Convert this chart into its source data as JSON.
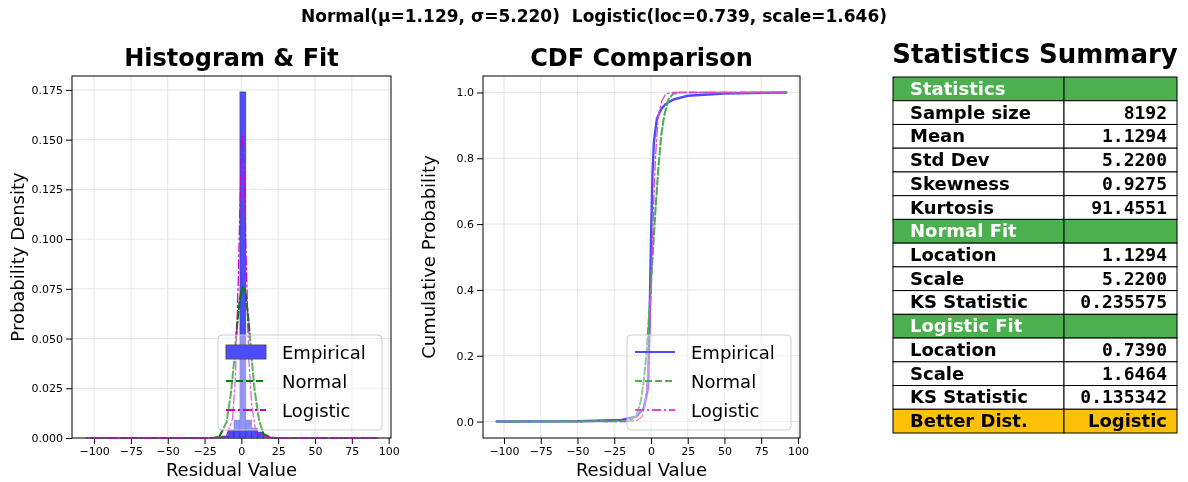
{
  "chart_data": [
    {
      "type": "histogram",
      "title": "Histogram & Fit",
      "xlabel": "Residual Value",
      "ylabel": "Probability Density",
      "annotations": [
        "Normal(μ=1.129, σ=5.220)  Logistic(loc=0.739, scale=1.646)"
      ],
      "xlim": [
        -115,
        101.6
      ],
      "xticks": [
        -100,
        -75,
        -50,
        -25,
        0,
        25,
        50,
        75,
        100
      ],
      "ylim": [
        0,
        0.182
      ],
      "yticks": [
        {
          "value": 0,
          "label": "0.000"
        },
        {
          "value": 0.025,
          "label": "0.025"
        },
        {
          "value": 0.05,
          "label": "0.050"
        },
        {
          "value": 0.075,
          "label": "0.075"
        },
        {
          "value": 0.1,
          "label": "0.100"
        },
        {
          "value": 0.125,
          "label": "0.125"
        },
        {
          "value": 0.15,
          "label": "0.150"
        },
        {
          "value": 0.175,
          "label": "0.175"
        }
      ],
      "grid": true,
      "legend": "bottom right",
      "series": [
        {
          "name": "Empirical",
          "type": "histogram",
          "color": "#4b4bff",
          "bins": [
            -105,
            -101,
            -97,
            -93,
            -89,
            -85,
            -81,
            -77,
            -73,
            -69,
            -65,
            -61,
            -57,
            -53,
            -49,
            -45,
            -41,
            -37,
            -33,
            -29,
            -25,
            -21,
            -17,
            -13,
            -9,
            -5,
            -1,
            3,
            7,
            11,
            15,
            19,
            23,
            27,
            31,
            35,
            39,
            43,
            47,
            51,
            55,
            59,
            63,
            67,
            71,
            75,
            79,
            83,
            87,
            91,
            95
          ],
          "values": [
            0,
            0,
            0,
            0,
            0,
            0,
            0,
            0,
            0,
            0,
            0,
            0,
            0,
            0,
            0,
            0,
            0,
            0,
            0,
            0,
            0,
            0,
            0.0005,
            0.001,
            0.004,
            0.009,
            0.174,
            0.009,
            0.005,
            0.003,
            0.001,
            0.0005,
            0,
            0,
            0,
            0,
            0,
            0,
            0,
            0,
            0,
            0,
            0,
            0,
            0,
            0,
            0,
            0,
            0,
            0
          ]
        },
        {
          "name": "Normal",
          "type": "line",
          "color": "#008000",
          "line_style": "dashed",
          "x": [
            -105,
            -20,
            -15,
            -10,
            -7,
            -5,
            -3,
            -1,
            1.1,
            3,
            5,
            7,
            9,
            12,
            15,
            20,
            92
          ],
          "values": [
            0,
            0,
            0.0006,
            0.008,
            0.023,
            0.038,
            0.056,
            0.07,
            0.076,
            0.072,
            0.058,
            0.04,
            0.024,
            0.009,
            0.002,
            0,
            0
          ]
        },
        {
          "name": "Logistic",
          "type": "line",
          "color": "#cc00cc",
          "line_style": "dashdot",
          "x": [
            -105,
            -20,
            -10,
            -6,
            -4,
            -2,
            -1,
            0,
            0.7,
            2,
            3,
            5,
            7,
            10,
            20,
            92
          ],
          "values": [
            0,
            0,
            0.0009,
            0.0098,
            0.031,
            0.082,
            0.116,
            0.144,
            0.152,
            0.132,
            0.098,
            0.04,
            0.017,
            0.002,
            0,
            0
          ]
        }
      ]
    },
    {
      "type": "line",
      "title": "CDF Comparison",
      "xlabel": "Residual Value",
      "ylabel": "Cumulative Probability",
      "xlim": [
        -114.3,
        101.4
      ],
      "xticks": [
        -100,
        -75,
        -50,
        -25,
        0,
        25,
        50,
        75,
        100
      ],
      "ylim": [
        -0.05,
        1.05
      ],
      "yticks": [
        {
          "value": 0,
          "label": "0.0"
        },
        {
          "value": 0.2,
          "label": "0.2"
        },
        {
          "value": 0.4,
          "label": "0.4"
        },
        {
          "value": 0.6,
          "label": "0.6"
        },
        {
          "value": 0.8,
          "label": "0.8"
        },
        {
          "value": 1,
          "label": "1.0"
        }
      ],
      "grid": true,
      "legend": "bottom right",
      "series": [
        {
          "name": "Empirical",
          "color": "#4d4dff",
          "line_style": "solid",
          "x": [
            -105,
            -50,
            -20,
            -10,
            -5,
            -2,
            -1,
            0,
            1,
            2,
            4,
            7,
            10,
            15,
            25,
            50,
            92
          ],
          "values": [
            0,
            0.001,
            0.005,
            0.015,
            0.04,
            0.1,
            0.3,
            0.55,
            0.75,
            0.85,
            0.92,
            0.95,
            0.965,
            0.978,
            0.99,
            0.997,
            1
          ]
        },
        {
          "name": "Normal",
          "color": "#4caf50",
          "line_style": "dashed",
          "x": [
            -105,
            -15,
            -10,
            -7,
            -5,
            -3,
            -1,
            1.1,
            3,
            5,
            7,
            9,
            12,
            15,
            20,
            92
          ],
          "values": [
            0,
            0.001,
            0.017,
            0.06,
            0.12,
            0.21,
            0.34,
            0.5,
            0.64,
            0.77,
            0.87,
            0.93,
            0.98,
            0.996,
            1,
            1
          ]
        },
        {
          "name": "Logistic",
          "color": "#dd44dd",
          "line_style": "dashdot",
          "x": [
            -105,
            -20,
            -10,
            -6,
            -4,
            -2,
            -1,
            0,
            0.7,
            2,
            3,
            5,
            7,
            10,
            15,
            92
          ],
          "values": [
            0,
            0,
            0.002,
            0.016,
            0.053,
            0.16,
            0.26,
            0.39,
            0.5,
            0.68,
            0.8,
            0.93,
            0.97,
            0.996,
            1,
            1
          ]
        }
      ]
    },
    {
      "type": "other",
      "title": "Statistics Summary",
      "cell_labels": [
        [
          "Statistics",
          null
        ],
        [
          "Sample size",
          "8192"
        ],
        [
          "Mean",
          "1.1294"
        ],
        [
          "Std Dev",
          "5.2200"
        ],
        [
          "Skewness",
          "0.9275"
        ],
        [
          "Kurtosis",
          "91.4551"
        ],
        [
          "Normal Fit",
          null
        ],
        [
          "Location",
          "1.1294"
        ],
        [
          "Scale",
          "5.2200"
        ],
        [
          "KS Statistic",
          "0.235575"
        ],
        [
          "Logistic Fit",
          null
        ],
        [
          "Location",
          "0.7390"
        ],
        [
          "Scale",
          "1.6464"
        ],
        [
          "KS Statistic",
          "0.135342"
        ],
        [
          "Better Dist.",
          "Logistic"
        ]
      ],
      "colors": [
        "#4caf50",
        null,
        null,
        null,
        null,
        null,
        "#4caf50",
        null,
        null,
        null,
        "#4caf50",
        null,
        null,
        null,
        "#ffc107"
      ]
    }
  ]
}
